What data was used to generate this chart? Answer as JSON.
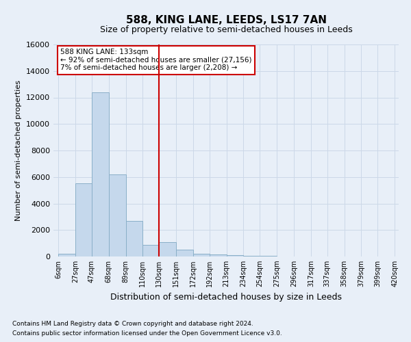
{
  "title": "588, KING LANE, LEEDS, LS17 7AN",
  "subtitle": "Size of property relative to semi-detached houses in Leeds",
  "xlabel": "Distribution of semi-detached houses by size in Leeds",
  "ylabel": "Number of semi-detached properties",
  "footnote1": "Contains HM Land Registry data © Crown copyright and database right 2024.",
  "footnote2": "Contains public sector information licensed under the Open Government Licence v3.0.",
  "annotation_title": "588 KING LANE: 133sqm",
  "annotation_line1": "← 92% of semi-detached houses are smaller (27,156)",
  "annotation_line2": "7% of semi-detached houses are larger (2,208) →",
  "bar_left_edges": [
    6,
    27,
    47,
    68,
    89,
    110,
    130,
    151,
    172,
    192,
    213,
    234,
    254,
    275,
    296,
    317,
    337,
    358,
    379,
    399
  ],
  "bar_widths": [
    21,
    20,
    21,
    21,
    21,
    20,
    21,
    21,
    20,
    21,
    21,
    20,
    21,
    21,
    21,
    20,
    21,
    21,
    20,
    21
  ],
  "bar_heights": [
    200,
    5500,
    12400,
    6200,
    2700,
    900,
    1100,
    500,
    200,
    150,
    100,
    50,
    30,
    10,
    5,
    5,
    2,
    2,
    2,
    0
  ],
  "bar_color": "#c5d8ec",
  "bar_edge_color": "#8aafc8",
  "redline_x": 130,
  "ylim": [
    0,
    16000
  ],
  "yticks": [
    0,
    2000,
    4000,
    6000,
    8000,
    10000,
    12000,
    14000,
    16000
  ],
  "xtick_labels": [
    "6sqm",
    "27sqm",
    "47sqm",
    "68sqm",
    "89sqm",
    "110sqm",
    "130sqm",
    "151sqm",
    "172sqm",
    "192sqm",
    "213sqm",
    "234sqm",
    "254sqm",
    "275sqm",
    "296sqm",
    "317sqm",
    "337sqm",
    "358sqm",
    "379sqm",
    "399sqm",
    "420sqm"
  ],
  "xtick_positions": [
    6,
    27,
    47,
    68,
    89,
    110,
    130,
    151,
    172,
    192,
    213,
    234,
    254,
    275,
    296,
    317,
    337,
    358,
    379,
    399,
    420
  ],
  "grid_color": "#ccd8e8",
  "background_color": "#e8eff8",
  "title_fontsize": 11,
  "subtitle_fontsize": 9,
  "ylabel_fontsize": 8,
  "xlabel_fontsize": 9,
  "annotation_box_facecolor": "#ffffff",
  "annotation_box_edgecolor": "#cc0000",
  "redline_color": "#cc0000",
  "footnote_fontsize": 6.5
}
